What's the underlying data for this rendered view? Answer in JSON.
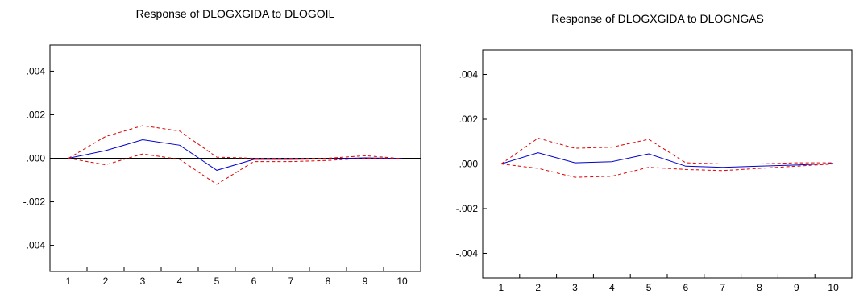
{
  "chart_data": [
    {
      "type": "line",
      "title": "Response of DLOGXGIDA to DLOGOIL",
      "categories": [
        "1",
        "2",
        "3",
        "4",
        "5",
        "6",
        "7",
        "8",
        "9",
        "10"
      ],
      "ylim": [
        -0.0052,
        0.0052
      ],
      "yticks": [
        ".004",
        ".002",
        ".000",
        "-.002",
        "-.004"
      ],
      "ytick_values": [
        0.004,
        0.002,
        0.0,
        -0.002,
        -0.004
      ],
      "grid": false,
      "zero_line": true,
      "series": [
        {
          "values": [
            0.0,
            0.00035,
            0.00085,
            0.0006,
            -0.00055,
            -5e-05,
            -5e-05,
            -3e-05,
            2e-05,
            -1e-05
          ],
          "color": "#0000cc",
          "dash": false
        },
        {
          "values": [
            0.0,
            0.001,
            0.0015,
            0.00125,
            5e-05,
            0.0,
            0.0,
            0.0,
            0.00012,
            -2e-05
          ],
          "color": "#dd0000",
          "dash": true
        },
        {
          "values": [
            0.0,
            -0.0003,
            0.0002,
            -5e-05,
            -0.0012,
            -0.00015,
            -0.00015,
            -0.0001,
            0.0,
            -3e-05
          ],
          "color": "#dd0000",
          "dash": true
        }
      ]
    },
    {
      "type": "line",
      "title": "Response of DLOGXGIDA to DLOGNGAS",
      "categories": [
        "1",
        "2",
        "3",
        "4",
        "5",
        "6",
        "7",
        "8",
        "9",
        "10"
      ],
      "ylim": [
        -0.0051,
        0.0051
      ],
      "yticks": [
        ".004",
        ".002",
        ".000",
        "-.002",
        "-.004"
      ],
      "ytick_values": [
        0.004,
        0.002,
        0.0,
        -0.002,
        -0.004
      ],
      "grid": false,
      "zero_line": true,
      "series": [
        {
          "values": [
            0.0,
            0.0005,
            5e-05,
            0.0001,
            0.00045,
            -0.0001,
            -0.00015,
            -0.0001,
            -5e-05,
            2e-05
          ],
          "color": "#0000cc",
          "dash": false
        },
        {
          "values": [
            0.0,
            0.00115,
            0.0007,
            0.00075,
            0.0011,
            5e-05,
            0.0,
            0.0,
            5e-05,
            5e-05
          ],
          "color": "#dd0000",
          "dash": true
        },
        {
          "values": [
            0.0,
            -0.0002,
            -0.0006,
            -0.00055,
            -0.00015,
            -0.00025,
            -0.0003,
            -0.0002,
            -0.0001,
            0.0
          ],
          "color": "#dd0000",
          "dash": true
        }
      ]
    }
  ]
}
